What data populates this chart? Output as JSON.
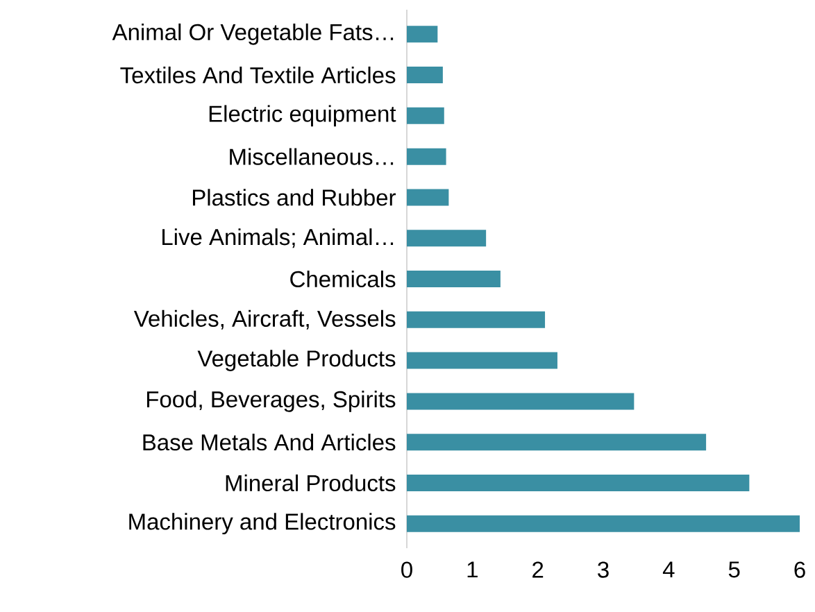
{
  "chart_data": {
    "type": "bar",
    "orientation": "horizontal",
    "categories": [
      "Animal Or Vegetable Fats…",
      "Textiles And Textile Articles",
      "Electric equipment",
      "Miscellaneous…",
      "Plastics and Rubber",
      "Live Animals; Animal…",
      "Chemicals",
      "Vehicles, Aircraft, Vessels",
      "Vegetable Products",
      "Food, Beverages, Spirits",
      "Base Metals And Articles",
      "Mineral Products",
      "Machinery and Electronics"
    ],
    "values": [
      0.47,
      0.55,
      0.57,
      0.6,
      0.64,
      1.21,
      1.43,
      2.11,
      2.3,
      3.47,
      4.57,
      5.23,
      6.0
    ],
    "color": "#3a8fa3",
    "xlim": [
      0,
      6
    ],
    "xticks": [
      0,
      1,
      2,
      3,
      4,
      5,
      6
    ]
  }
}
